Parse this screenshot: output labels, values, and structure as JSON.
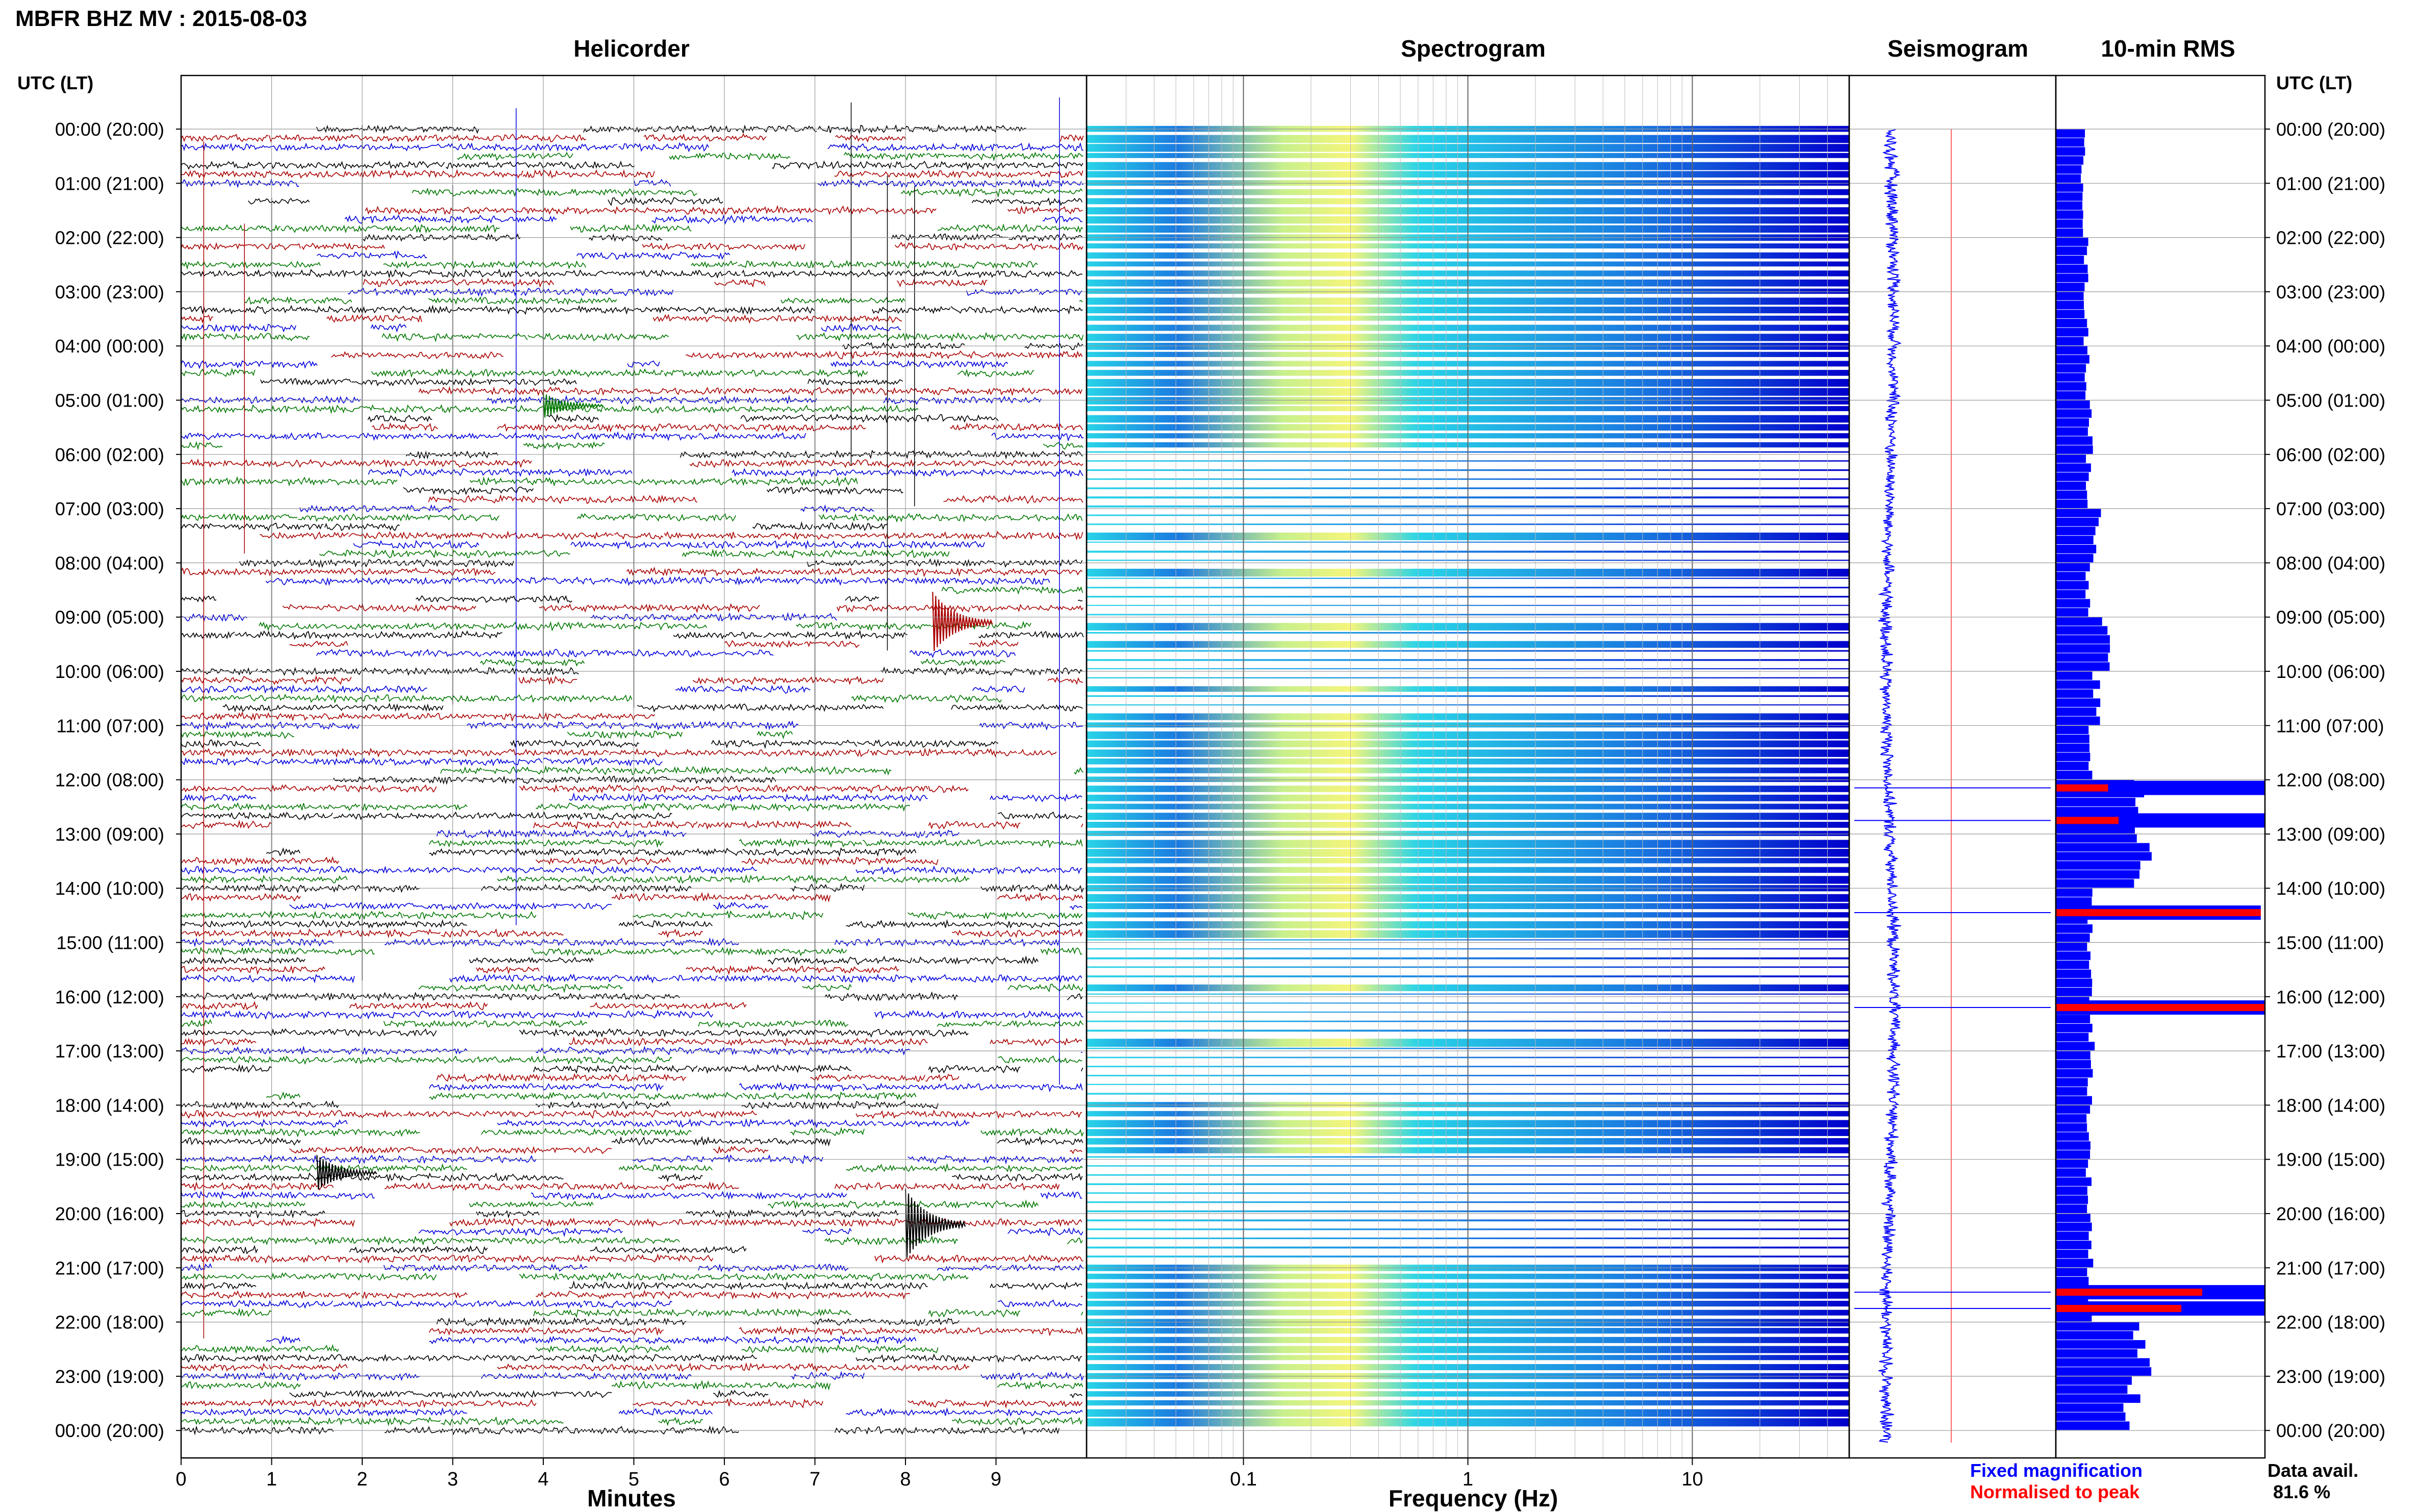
{
  "page": {
    "title": "MBFR BHZ MV : 2015-08-03",
    "panel_titles": {
      "helicorder": "Helicorder",
      "spectrogram": "Spectrogram",
      "seismogram": "Seismogram",
      "rms": "10-min RMS"
    },
    "y_header": "UTC (LT)",
    "legend": {
      "fixed": "Fixed magnification",
      "normalised": "Normalised to peak",
      "fixed_color": "#0000ff",
      "normalised_color": "#ff0000"
    },
    "data_avail_label": "Data avail.",
    "data_avail_value": "81.6 %"
  },
  "chart_data": [
    {
      "type": "line",
      "name": "helicorder",
      "title": "Helicorder",
      "xlabel": "Minutes",
      "ylabel": "UTC (LT)",
      "xlim": [
        0,
        10
      ],
      "x_ticks": [
        "0",
        "1",
        "2",
        "3",
        "4",
        "5",
        "6",
        "7",
        "8",
        "9"
      ],
      "y_ticks": [
        "00:00 (20:00)",
        "01:00 (21:00)",
        "02:00 (22:00)",
        "03:00 (23:00)",
        "04:00 (00:00)",
        "05:00 (01:00)",
        "06:00 (02:00)",
        "07:00 (03:00)",
        "08:00 (04:00)",
        "09:00 (05:00)",
        "10:00 (06:00)",
        "11:00 (07:00)",
        "12:00 (08:00)",
        "13:00 (09:00)",
        "14:00 (10:00)",
        "15:00 (11:00)",
        "16:00 (12:00)",
        "17:00 (13:00)",
        "18:00 (14:00)",
        "19:00 (15:00)",
        "20:00 (16:00)",
        "21:00 (17:00)",
        "22:00 (18:00)",
        "23:00 (19:00)",
        "00:00 (20:00)"
      ],
      "trace_colors": [
        "#000000",
        "#aa0000",
        "#0000dd",
        "#007700"
      ],
      "traces_per_hour": 6,
      "grid": true
    },
    {
      "type": "heatmap",
      "name": "spectrogram",
      "title": "Spectrogram",
      "xlabel": "Frequency (Hz)",
      "x_scale": "log",
      "xlim": [
        0.02,
        50
      ],
      "x_ticks": [
        "0.1",
        "1",
        "10"
      ],
      "peak_band_hz": [
        0.15,
        0.6
      ],
      "active_hours": [
        0,
        1,
        2,
        3,
        4,
        5,
        11,
        12,
        13,
        14,
        18,
        21,
        22,
        23
      ],
      "colors": [
        "#0000cc",
        "#1a7ae0",
        "#28d4e8",
        "#c8f08c",
        "#f5f57a"
      ]
    },
    {
      "type": "line",
      "name": "seismogram",
      "title": "Seismogram"
    },
    {
      "type": "bar",
      "name": "rms",
      "title": "10-min RMS",
      "orientation": "horizontal",
      "hours": [
        "00:00",
        "01:00",
        "02:00",
        "03:00",
        "04:00",
        "05:00",
        "06:00",
        "07:00",
        "08:00",
        "09:00",
        "10:00",
        "11:00",
        "12:00",
        "13:00",
        "14:00",
        "15:00",
        "16:00",
        "17:00",
        "18:00",
        "19:00",
        "20:00",
        "21:00",
        "22:00",
        "23:00"
      ],
      "fixed_values": [
        0.2,
        0.22,
        0.24,
        0.24,
        0.26,
        0.3,
        0.28,
        0.4,
        0.26,
        0.5,
        0.38,
        0.3,
        1.0,
        1.0,
        0.3,
        0.3,
        0.32,
        0.3,
        0.28,
        0.28,
        0.3,
        0.3,
        1.0,
        0.88
      ],
      "spikes": [
        {
          "hour": 12.15,
          "fixed": 1.0,
          "normalised": 0.25
        },
        {
          "hour": 12.75,
          "fixed": 1.0,
          "normalised": 0.3
        },
        {
          "hour": 14.45,
          "fixed": 0.98,
          "normalised": 0.98
        },
        {
          "hour": 16.2,
          "fixed": 1.0,
          "normalised": 1.0
        },
        {
          "hour": 21.45,
          "fixed": 1.0,
          "normalised": 0.7
        },
        {
          "hour": 21.75,
          "fixed": 1.0,
          "normalised": 0.6
        }
      ]
    }
  ]
}
